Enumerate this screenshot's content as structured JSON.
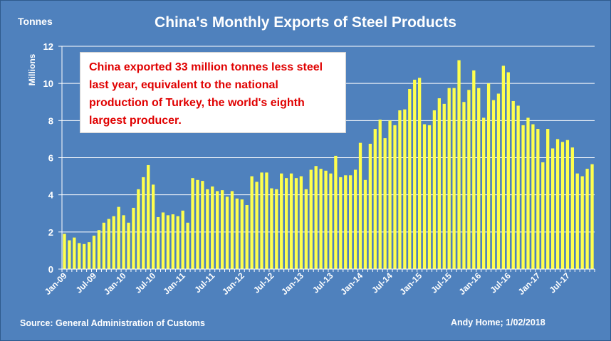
{
  "chart_data": {
    "type": "bar",
    "title": "China's Monthly Exports of Steel Products",
    "unit_label": "Tonnes",
    "ylabel": "Millions",
    "ylim": [
      0,
      12
    ],
    "yticks": [
      0,
      2,
      4,
      6,
      8,
      10,
      12
    ],
    "grid": true,
    "xtick_labels": [
      "Jan-09",
      "Jul-09",
      "Jan-10",
      "Jul-10",
      "Jan-11",
      "Jul-11",
      "Jan-12",
      "Jul-12",
      "Jan-13",
      "Jul-13",
      "Jan-14",
      "Jul-14",
      "Jan-15",
      "Jul-15",
      "Jan-16",
      "Jul-16",
      "Jan-17",
      "Jul-17"
    ],
    "categories": [
      "Jan-09",
      "Feb-09",
      "Mar-09",
      "Apr-09",
      "May-09",
      "Jun-09",
      "Jul-09",
      "Aug-09",
      "Sep-09",
      "Oct-09",
      "Nov-09",
      "Dec-09",
      "Jan-10",
      "Feb-10",
      "Mar-10",
      "Apr-10",
      "May-10",
      "Jun-10",
      "Jul-10",
      "Aug-10",
      "Sep-10",
      "Oct-10",
      "Nov-10",
      "Dec-10",
      "Jan-11",
      "Feb-11",
      "Mar-11",
      "Apr-11",
      "May-11",
      "Jun-11",
      "Jul-11",
      "Aug-11",
      "Sep-11",
      "Oct-11",
      "Nov-11",
      "Dec-11",
      "Jan-12",
      "Feb-12",
      "Mar-12",
      "Apr-12",
      "May-12",
      "Jun-12",
      "Jul-12",
      "Aug-12",
      "Sep-12",
      "Oct-12",
      "Nov-12",
      "Dec-12",
      "Jan-13",
      "Feb-13",
      "Mar-13",
      "Apr-13",
      "May-13",
      "Jun-13",
      "Jul-13",
      "Aug-13",
      "Sep-13",
      "Oct-13",
      "Nov-13",
      "Dec-13",
      "Jan-14",
      "Feb-14",
      "Mar-14",
      "Apr-14",
      "May-14",
      "Jun-14",
      "Jul-14",
      "Aug-14",
      "Sep-14",
      "Oct-14",
      "Nov-14",
      "Dec-14",
      "Jan-15",
      "Feb-15",
      "Mar-15",
      "Apr-15",
      "May-15",
      "Jun-15",
      "Jul-15",
      "Aug-15",
      "Sep-15",
      "Oct-15",
      "Nov-15",
      "Dec-15",
      "Jan-16",
      "Feb-16",
      "Mar-16",
      "Apr-16",
      "May-16",
      "Jun-16",
      "Jul-16",
      "Aug-16",
      "Sep-16",
      "Oct-16",
      "Nov-16",
      "Dec-16",
      "Jan-17",
      "Feb-17",
      "Mar-17",
      "Apr-17",
      "May-17",
      "Jun-17",
      "Jul-17",
      "Aug-17",
      "Sep-17",
      "Oct-17",
      "Nov-17",
      "Dec-17"
    ],
    "values": [
      1.9,
      1.55,
      1.7,
      1.4,
      1.35,
      1.45,
      1.8,
      2.1,
      2.5,
      2.7,
      2.85,
      3.35,
      2.9,
      2.5,
      3.3,
      4.3,
      4.95,
      5.6,
      4.55,
      2.8,
      3.05,
      2.9,
      2.95,
      2.85,
      3.15,
      2.5,
      4.9,
      4.8,
      4.75,
      4.3,
      4.45,
      4.2,
      4.25,
      3.9,
      4.2,
      3.8,
      3.75,
      3.45,
      5.0,
      4.7,
      5.2,
      5.2,
      4.35,
      4.3,
      5.15,
      4.9,
      5.15,
      4.9,
      5.0,
      4.3,
      5.35,
      5.55,
      5.4,
      5.3,
      5.15,
      6.1,
      4.95,
      5.05,
      5.05,
      5.35,
      6.8,
      4.8,
      6.75,
      7.55,
      8.05,
      7.05,
      8.0,
      7.75,
      8.55,
      8.6,
      9.7,
      10.2,
      10.3,
      7.8,
      7.75,
      8.55,
      9.2,
      8.9,
      9.75,
      9.75,
      11.25,
      9.0,
      9.65,
      10.7,
      9.75,
      8.15,
      10.0,
      9.1,
      9.45,
      10.95,
      10.6,
      9.05,
      8.8,
      7.75,
      8.15,
      7.8,
      7.55,
      5.75,
      7.55,
      6.5,
      7.0,
      6.85,
      6.95,
      6.55,
      5.15,
      5.0,
      5.4,
      5.65
    ],
    "bar_color": "#ffff4d",
    "background_color": "#4f81bd",
    "annotation": "China exported 33 million tonnes less steel last year, equivalent to the national production of Turkey, the world's eighth largest producer.",
    "annotation_color": "#e00000",
    "source": "Source: General  Administration  of Customs",
    "credit": "Andy Home; 1/02/2018"
  }
}
